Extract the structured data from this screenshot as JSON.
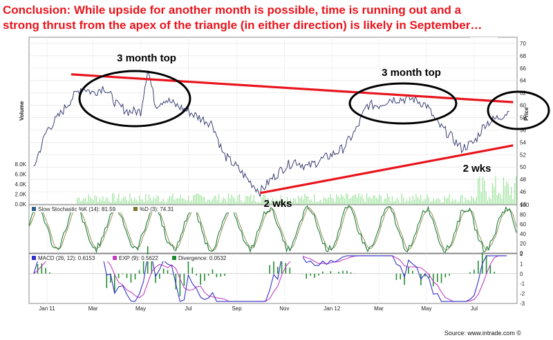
{
  "headline": {
    "line1": "Conclusion:  While upside for another month is possible, time is running out and a",
    "line2": "strong thrust from the apex of the triangle (in either direction) is likely in September…"
  },
  "source": "Source: www.intrade.com ©",
  "colors": {
    "annotation_red": "#e8141c",
    "price_line": "#3a3f73",
    "volume": "#9be39b",
    "stoch_k": "#1f7a3a",
    "macd": "#3030c8",
    "signal": "#c040c0",
    "divergence": "#1f8a2f"
  },
  "chart_data": [
    {
      "type": "line",
      "panel": "price",
      "ylabel": "Price",
      "y2label": "Volume",
      "ylim": [
        44,
        71
      ],
      "yticks": [
        44,
        46,
        48,
        50,
        52,
        54,
        56,
        58,
        60,
        62,
        64,
        66,
        68,
        70
      ],
      "volume_ticks": [
        "0.0K",
        "2.0K",
        "4.0K",
        "6.0K",
        "8.0K"
      ],
      "x_ticks": [
        "Jan 11",
        "Mar",
        "May",
        "Jul",
        "Sep",
        "Nov",
        "Jan 12",
        "Mar",
        "May",
        "Jul"
      ],
      "series": [
        {
          "x": [
            "2010-12-15",
            "2011-01-01",
            "2011-01-15",
            "2011-02-01",
            "2011-02-15",
            "2011-03-01",
            "2011-03-15",
            "2011-04-01",
            "2011-04-15",
            "2011-05-01",
            "2011-05-10",
            "2011-05-20",
            "2011-06-01",
            "2011-06-15",
            "2011-07-01",
            "2011-07-15",
            "2011-08-01",
            "2011-08-15",
            "2011-09-01",
            "2011-09-15",
            "2011-10-01",
            "2011-10-15",
            "2011-11-01",
            "2011-11-15",
            "2011-12-01",
            "2011-12-15",
            "2012-01-01",
            "2012-01-15",
            "2012-02-01",
            "2012-02-15",
            "2012-03-01",
            "2012-03-15",
            "2012-04-01",
            "2012-04-15",
            "2012-05-01",
            "2012-05-15",
            "2012-06-01",
            "2012-06-15",
            "2012-07-01",
            "2012-07-15",
            "2012-08-01",
            "2012-08-15"
          ],
          "y": [
            50,
            56,
            58,
            61,
            63,
            62,
            63,
            60,
            59,
            59,
            66,
            60,
            61,
            60,
            59,
            58,
            57,
            52,
            50,
            48,
            46,
            48,
            50,
            51,
            50,
            51,
            52,
            53,
            56,
            60,
            60,
            61,
            61,
            61,
            60,
            57,
            55,
            53,
            54,
            57,
            58,
            59
          ]
        }
      ],
      "annotations": [
        {
          "text": "3 month top"
        },
        {
          "text": "3 month top"
        },
        {
          "text": "2 wks"
        },
        {
          "text": "2 wks"
        }
      ],
      "trendlines": [
        {
          "from": [
            "2011-02-01",
            65
          ],
          "to": [
            "2012-08-20",
            60.5
          ],
          "note": "upper triangle line"
        },
        {
          "from": [
            "2011-10-01",
            45.8
          ],
          "to": [
            "2012-08-20",
            53.5
          ],
          "note": "lower triangle line"
        }
      ]
    },
    {
      "type": "line",
      "panel": "stochastic",
      "legend": [
        {
          "label": "Slow Stochastic %K (14): 81.59"
        },
        {
          "label": "%D (3): 74.31"
        }
      ],
      "ylim": [
        0,
        100
      ],
      "yticks": [
        0,
        20,
        40,
        60,
        80,
        100
      ]
    },
    {
      "type": "line",
      "panel": "macd",
      "legend": [
        {
          "label": "MACD (26, 12): 0.6153"
        },
        {
          "label": "EXP (9): 0.5622"
        },
        {
          "label": "Divergence: 0.0532"
        }
      ],
      "ylim": [
        -3,
        2
      ],
      "yticks": [
        -3,
        -2,
        -1,
        0,
        1,
        2
      ]
    }
  ]
}
